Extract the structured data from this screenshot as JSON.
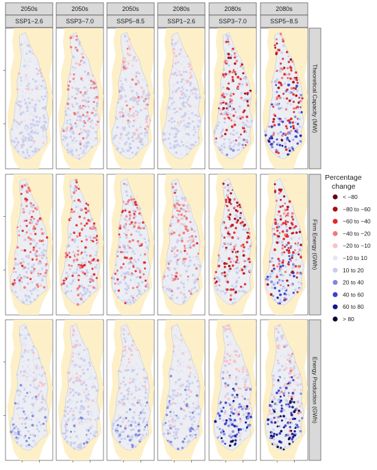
{
  "chart_data": {
    "type": "faceted-map",
    "columns": [
      {
        "period": "2050s",
        "scenario": "SSP1−2.6"
      },
      {
        "period": "2050s",
        "scenario": "SSP3−7.0"
      },
      {
        "period": "2050s",
        "scenario": "SSP5−8.5"
      },
      {
        "period": "2080s",
        "scenario": "SSP1−2.6"
      },
      {
        "period": "2080s",
        "scenario": "SSP3−7.0"
      },
      {
        "period": "2080s",
        "scenario": "SSP5−8.5"
      }
    ],
    "rows": [
      "Theoretical Capacity (MW)",
      "Firm Energy (GWh)",
      "Energy Production (GWh)"
    ],
    "legend": {
      "title_line1": "Percentage",
      "title_line2": "change",
      "classes": [
        {
          "label": "< −80",
          "color": "#67000d"
        },
        {
          "label": "−80 to −60",
          "color": "#a50f15"
        },
        {
          "label": "−60 to −40",
          "color": "#e02a2a"
        },
        {
          "label": "−40 to −20",
          "color": "#f07a7a"
        },
        {
          "label": "−20 to −10",
          "color": "#fbc1c1"
        },
        {
          "label": "−10 to 10",
          "color": "#e6e6f2"
        },
        {
          "label": "10 to 20",
          "color": "#c8ccee"
        },
        {
          "label": "20 to 40",
          "color": "#7f88dc"
        },
        {
          "label": "40 to 60",
          "color": "#3a3fd0"
        },
        {
          "label": "60 to 80",
          "color": "#12168f"
        },
        {
          "label": "> 80",
          "color": "#050530"
        }
      ]
    },
    "land_color": "#fdf0c8",
    "basin_color": "#eceef3",
    "panel_intensity": [
      [
        {
          "red": 0.1,
          "blue": 0.35
        },
        {
          "red": 0.55,
          "blue": 0.3
        },
        {
          "red": 0.45,
          "blue": 0.35
        },
        {
          "red": 0.1,
          "blue": 0.3
        },
        {
          "red": 0.9,
          "blue": 0.4
        },
        {
          "red": 0.85,
          "blue": 0.75
        }
      ],
      [
        {
          "red": 0.65,
          "blue": 0.3
        },
        {
          "red": 0.8,
          "blue": 0.3
        },
        {
          "red": 0.7,
          "blue": 0.3
        },
        {
          "red": 0.6,
          "blue": 0.25
        },
        {
          "red": 1.0,
          "blue": 0.3
        },
        {
          "red": 0.95,
          "blue": 0.7
        }
      ],
      [
        {
          "red": 0.05,
          "blue": 0.45
        },
        {
          "red": 0.15,
          "blue": 0.4
        },
        {
          "red": 0.15,
          "blue": 0.5
        },
        {
          "red": 0.1,
          "blue": 0.5
        },
        {
          "red": 0.35,
          "blue": 0.85
        },
        {
          "red": 0.4,
          "blue": 1.0
        }
      ]
    ]
  }
}
